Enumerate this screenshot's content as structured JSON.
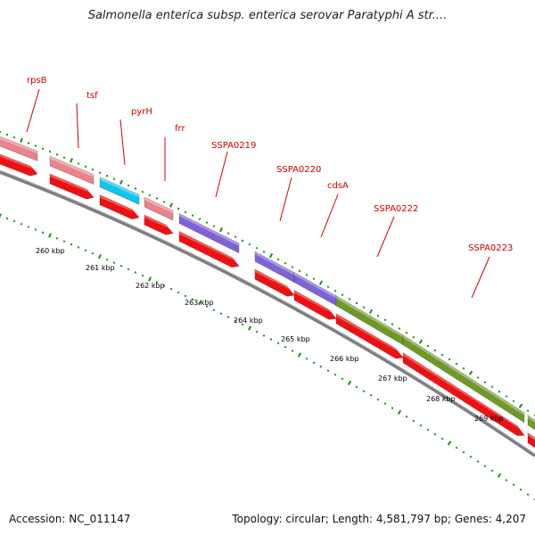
{
  "title": "Salmonella enterica subsp. enterica serovar Paratyphi A str....",
  "accession_label": "Accession: NC_011147",
  "summary_label": "Topology: circular; Length: 4,581,797 bp; Genes: 4,207",
  "colors": {
    "label": "#cc0000",
    "tick": "#1e8a1e",
    "backbone": "#7f7f7f",
    "cds": "#ee1111",
    "pink": "#e8848a",
    "cyan": "#11c4ee",
    "purple": "#7e62d6",
    "olive": "#6d9a25"
  },
  "genes": [
    {
      "name": "rpsB",
      "color": "pink"
    },
    {
      "name": "tsf",
      "color": "pink"
    },
    {
      "name": "pyrH",
      "color": "cyan"
    },
    {
      "name": "frr",
      "color": "pink"
    },
    {
      "name": "SSPA0219",
      "color": "purple"
    },
    {
      "name": "SSPA0220",
      "color": "purple"
    },
    {
      "name": "cdsA",
      "color": "purple"
    },
    {
      "name": "SSPA0222",
      "color": "olive"
    },
    {
      "name": "SSPA0223",
      "color": "olive"
    }
  ],
  "scale_labels": [
    "260 kbp",
    "261 kbp",
    "262 kbp",
    "263 kbp",
    "264 kbp",
    "265 kbp",
    "266 kbp",
    "267 kbp",
    "268 kbp",
    "269 kbp"
  ]
}
